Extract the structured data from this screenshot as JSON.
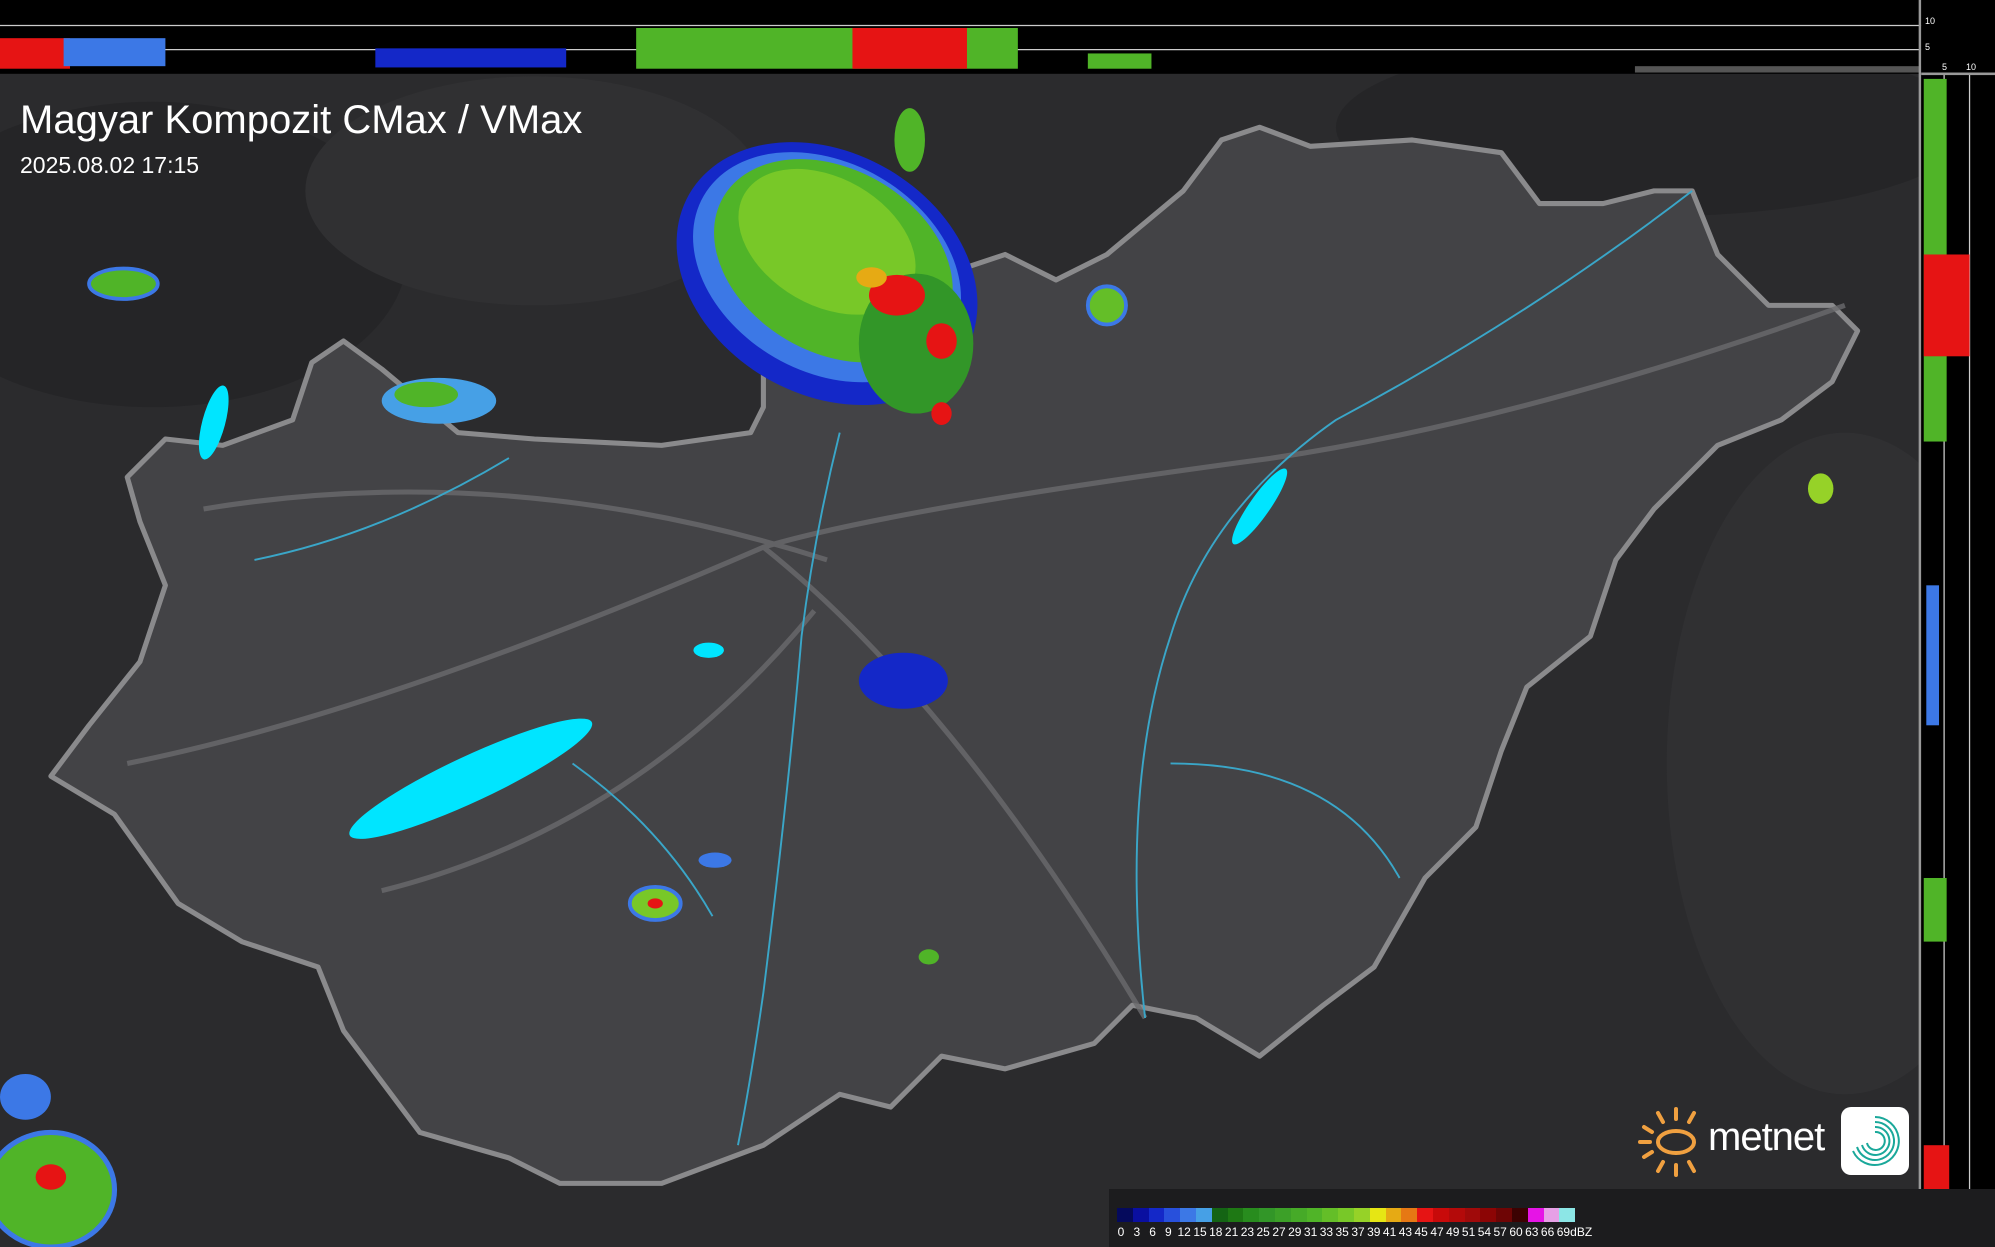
{
  "header": {
    "title": "Magyar Kompozit CMax / VMax",
    "timestamp": "2025.08.02 17:15"
  },
  "side_axes": {
    "top_ticks": [
      "10",
      "5"
    ],
    "right_ticks": [
      "5",
      "10"
    ]
  },
  "legend": {
    "unit": "dBZ",
    "ticks": [
      "0",
      "3",
      "6",
      "9",
      "12",
      "15",
      "18",
      "21",
      "23",
      "25",
      "27",
      "29",
      "31",
      "33",
      "35",
      "37",
      "39",
      "41",
      "43",
      "45",
      "47",
      "49",
      "51",
      "54",
      "57",
      "60",
      "63",
      "66",
      "69"
    ],
    "colors": [
      "#050a5c",
      "#0a0fa0",
      "#1428c8",
      "#2850dc",
      "#3c78e6",
      "#46a0e6",
      "#146414",
      "#1e7814",
      "#288c1e",
      "#329628",
      "#3ca028",
      "#46aa28",
      "#50b428",
      "#64be28",
      "#78c828",
      "#96d228",
      "#e6e614",
      "#e6aa14",
      "#e67814",
      "#e61414",
      "#c80a0a",
      "#b40a0a",
      "#a00a0a",
      "#8c0505",
      "#6e0505",
      "#3c0202",
      "#e614e6",
      "#e6a0e6",
      "#8ce6e6"
    ]
  },
  "brand": {
    "name": "metnet",
    "sun_color": "#f0a040",
    "icon_color": "#1aa89a"
  },
  "map_colors": {
    "background": "#2b2b2d",
    "country_fill": "#434346",
    "border": "#8a8a8c",
    "lakes": "#00e5ff",
    "rivers": "#3aa6c8"
  }
}
